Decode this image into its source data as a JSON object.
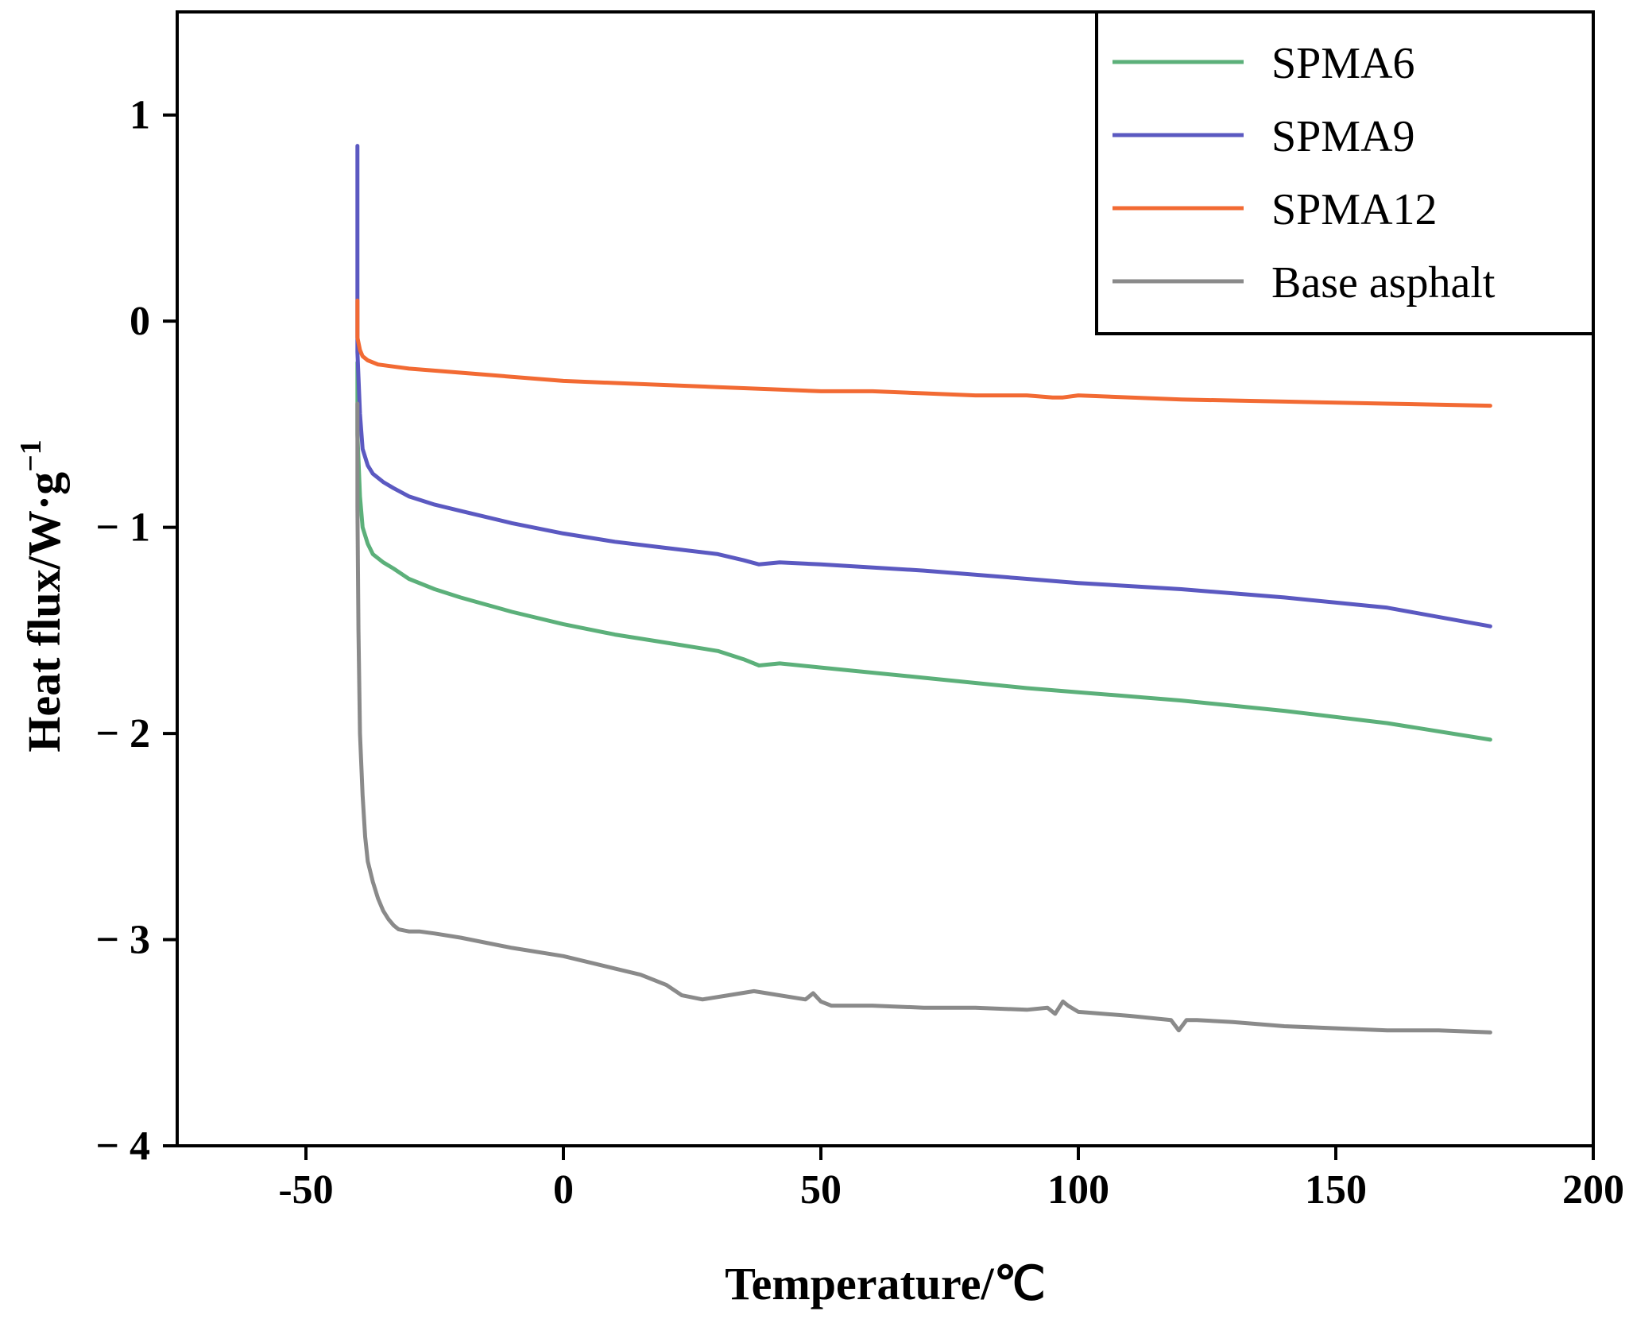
{
  "chart_data": {
    "type": "line",
    "title": "",
    "xlabel": "Temperature/℃",
    "ylabel": "Heat flux/W·g",
    "ylabel_superscript": "−1",
    "xlim": [
      -75,
      200
    ],
    "ylim": [
      -4,
      1.5
    ],
    "x_ticks": [
      -50,
      0,
      50,
      100,
      150,
      200
    ],
    "x_tick_labels": [
      "-50",
      "0",
      "50",
      "100",
      "150",
      "200"
    ],
    "y_ticks": [
      1,
      0,
      -1,
      -2,
      -3,
      -4
    ],
    "y_tick_labels": [
      "1",
      "0",
      "− 1",
      "− 2",
      "− 3",
      "− 4"
    ],
    "grid": false,
    "legend_position": "top-right",
    "series": [
      {
        "name": "SPMA6",
        "color": "#5cb07a",
        "x": [
          -40,
          -40,
          -39.5,
          -39,
          -38,
          -37,
          -35,
          -33,
          -30,
          -25,
          -20,
          -10,
          0,
          10,
          20,
          30,
          35,
          38,
          42,
          50,
          70,
          90,
          100,
          120,
          140,
          160,
          180
        ],
        "y": [
          -0.2,
          -0.55,
          -0.85,
          -1.0,
          -1.08,
          -1.13,
          -1.17,
          -1.2,
          -1.25,
          -1.3,
          -1.34,
          -1.41,
          -1.47,
          -1.52,
          -1.56,
          -1.6,
          -1.64,
          -1.67,
          -1.66,
          -1.68,
          -1.73,
          -1.78,
          -1.8,
          -1.84,
          -1.89,
          -1.95,
          -2.03
        ]
      },
      {
        "name": "SPMA9",
        "color": "#5b59c1",
        "x": [
          -40,
          -40,
          -39.5,
          -39,
          -38,
          -37,
          -35,
          -33,
          -30,
          -25,
          -20,
          -10,
          0,
          10,
          20,
          30,
          35,
          38,
          42,
          50,
          70,
          90,
          100,
          120,
          140,
          160,
          180
        ],
        "y": [
          0.85,
          -0.15,
          -0.45,
          -0.62,
          -0.7,
          -0.74,
          -0.78,
          -0.81,
          -0.85,
          -0.89,
          -0.92,
          -0.98,
          -1.03,
          -1.07,
          -1.1,
          -1.13,
          -1.16,
          -1.18,
          -1.17,
          -1.18,
          -1.21,
          -1.25,
          -1.27,
          -1.3,
          -1.34,
          -1.39,
          -1.48
        ]
      },
      {
        "name": "SPMA12",
        "color": "#f26a33",
        "x": [
          -40,
          -40,
          -39.5,
          -39,
          -38,
          -36,
          -33,
          -30,
          -20,
          -10,
          0,
          10,
          20,
          30,
          40,
          50,
          60,
          70,
          80,
          90,
          95,
          97,
          100,
          120,
          140,
          160,
          180
        ],
        "y": [
          0.1,
          -0.08,
          -0.14,
          -0.17,
          -0.19,
          -0.21,
          -0.22,
          -0.23,
          -0.25,
          -0.27,
          -0.29,
          -0.3,
          -0.31,
          -0.32,
          -0.33,
          -0.34,
          -0.34,
          -0.35,
          -0.36,
          -0.36,
          -0.37,
          -0.37,
          -0.36,
          -0.38,
          -0.39,
          -0.4,
          -0.41
        ]
      },
      {
        "name": "Base asphalt",
        "color": "#8a8a8a",
        "x": [
          -40,
          -40,
          -39.8,
          -39.5,
          -39,
          -38.5,
          -38,
          -37,
          -36,
          -35,
          -34,
          -33,
          -32,
          -30,
          -28,
          -25,
          -20,
          -10,
          0,
          10,
          15,
          20,
          23,
          27,
          32,
          37,
          42,
          47,
          48.5,
          50,
          52,
          60,
          70,
          80,
          90,
          94,
          95.5,
          97,
          98,
          100,
          110,
          118,
          119.5,
          121,
          123,
          130,
          140,
          150,
          160,
          170,
          180
        ],
        "y": [
          -0.4,
          -0.9,
          -1.5,
          -2.0,
          -2.3,
          -2.5,
          -2.62,
          -2.72,
          -2.8,
          -2.86,
          -2.9,
          -2.93,
          -2.95,
          -2.96,
          -2.96,
          -2.97,
          -2.99,
          -3.04,
          -3.08,
          -3.14,
          -3.17,
          -3.22,
          -3.27,
          -3.29,
          -3.27,
          -3.25,
          -3.27,
          -3.29,
          -3.26,
          -3.3,
          -3.32,
          -3.32,
          -3.33,
          -3.33,
          -3.34,
          -3.33,
          -3.36,
          -3.3,
          -3.32,
          -3.35,
          -3.37,
          -3.39,
          -3.44,
          -3.39,
          -3.39,
          -3.4,
          -3.42,
          -3.43,
          -3.44,
          -3.44,
          -3.45
        ]
      }
    ]
  }
}
